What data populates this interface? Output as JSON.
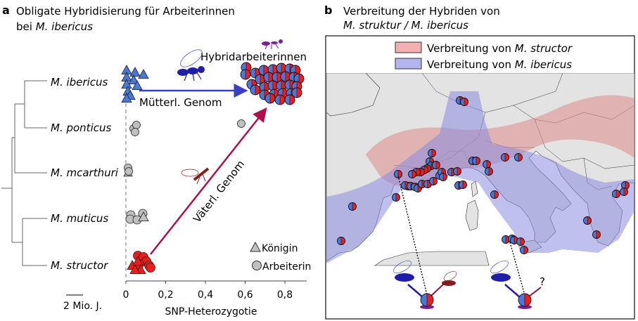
{
  "panel_a": {
    "letter": "a",
    "title_line1": "Obligate Hybridisierung für Arbeiterinnen",
    "title_line2_prefix": "bei ",
    "title_line2_species": "M. ibericus",
    "species": [
      "M. ibericus",
      "M. ponticus",
      "M. mcarthuri",
      "M. muticus",
      "M. structor"
    ],
    "hybrid_label": "Hybridarbeiterinnen",
    "maternal_label": "Mütterl. Genom",
    "paternal_label": "Väterl. Genom",
    "scale_bar_label": "2 Mio. J.",
    "x_axis_label": "SNP-Heterozygotie",
    "x_ticks": [
      "0",
      "0,2",
      "0,4",
      "0,6",
      "0,8"
    ],
    "legend": {
      "queen": "Königin",
      "worker": "Arbeiterin"
    }
  },
  "panel_b": {
    "letter": "b",
    "title_line1": "Verbreitung der Hybriden von",
    "title_line2": "M. struktur / M. ibericus",
    "legend": {
      "structor_prefix": "Verbreitung von ",
      "structor_species": "M. structor",
      "ibericus_prefix": "Verbreitung von ",
      "ibericus_species": "M. ibericus"
    },
    "unknown_father": "?"
  },
  "colors": {
    "ibericus_blue": "#4a78d8",
    "structor_red": "#ee1c1c",
    "maternal_arrow": "#3b3fc4",
    "paternal_arrow": "#b0104a",
    "grey_species": "#c0c0c0",
    "structor_range": "#e8a0a0",
    "ibericus_range": "#a9abe6",
    "land": "#e3e3e3"
  }
}
